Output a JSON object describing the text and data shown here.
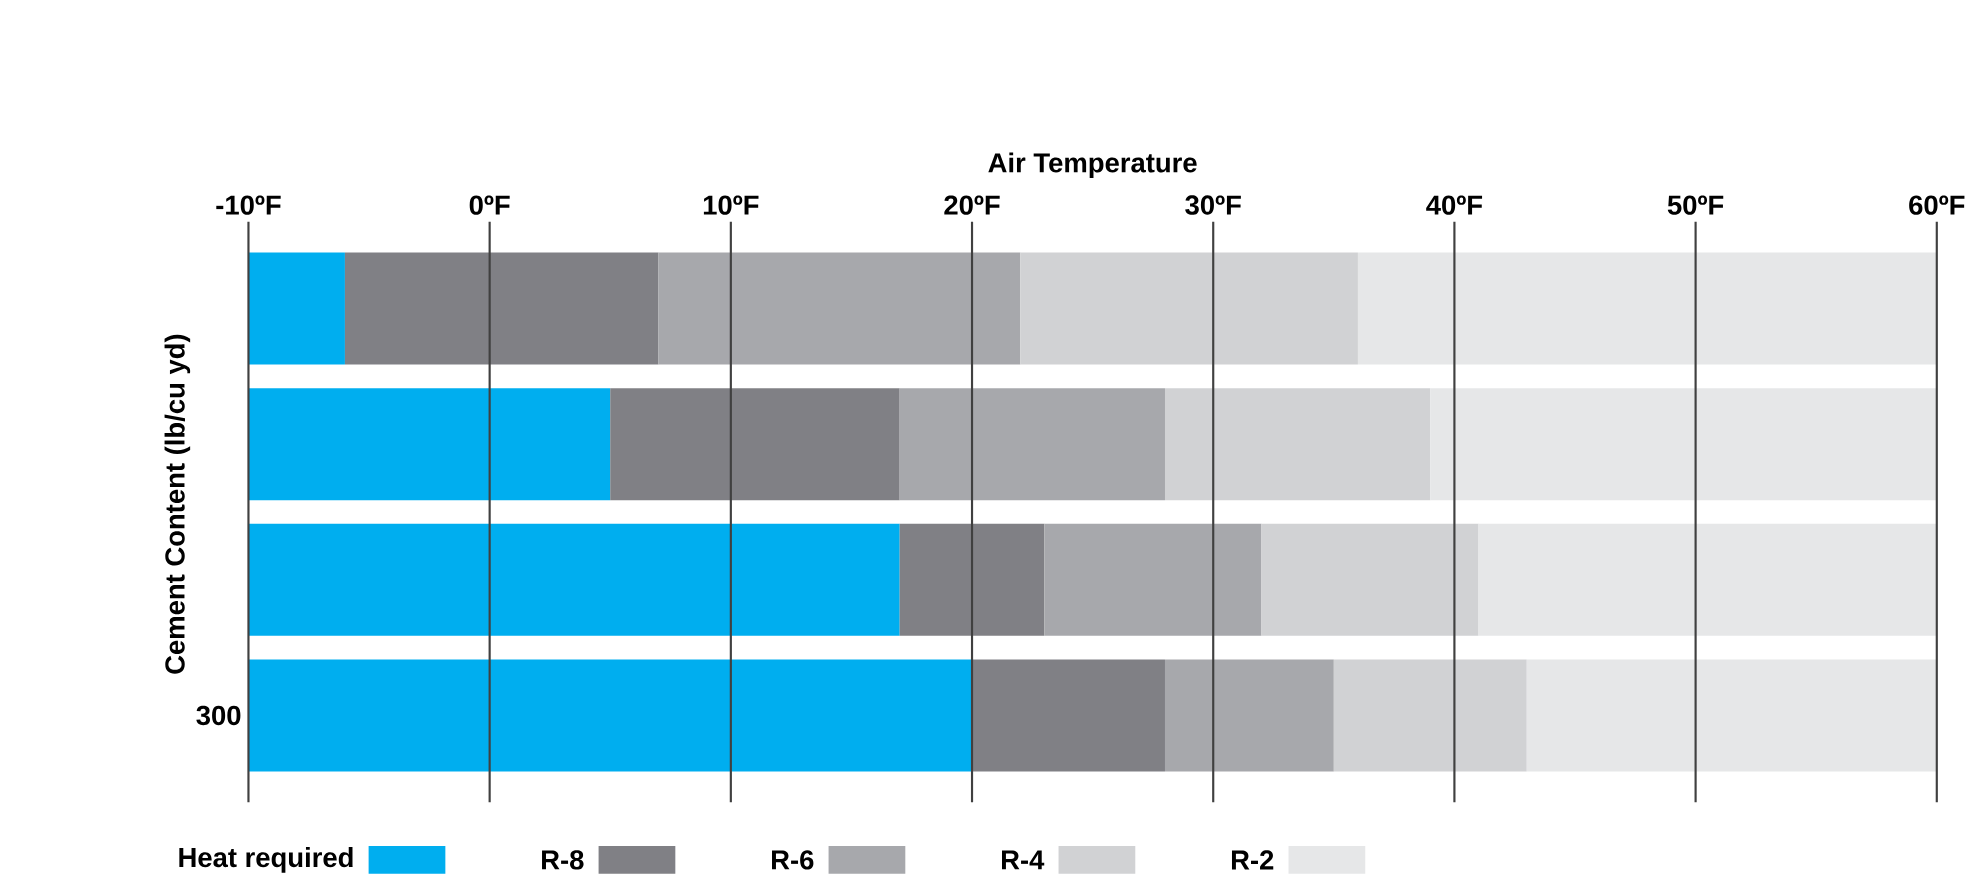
{
  "chart_data": {
    "type": "bar",
    "orientation": "horizontal",
    "xlabel": "Air Temperature",
    "ylabel": "Cement Content (lb/cu yd)",
    "categories": [
      null,
      null,
      null,
      "300"
    ],
    "series": [
      {
        "name": "Heat required",
        "color": "#00aeef",
        "base": [
          -10,
          -10,
          -10,
          -10
        ],
        "values": [
          4,
          15,
          27,
          30
        ]
      },
      {
        "name": "R-8",
        "color": "#808085",
        "base": [
          -6,
          5,
          17,
          20
        ],
        "values": [
          13,
          12,
          6,
          8
        ]
      },
      {
        "name": "R-6",
        "color": "#a7a8ac",
        "base": [
          7,
          17,
          23,
          28
        ],
        "values": [
          15,
          11,
          9,
          7
        ]
      },
      {
        "name": "R-4",
        "color": "#d1d2d4",
        "base": [
          22,
          28,
          32,
          35
        ],
        "values": [
          14,
          11,
          9,
          8
        ]
      },
      {
        "name": "R-2",
        "color": "#e6e7e8",
        "base": [
          36,
          39,
          41,
          43
        ],
        "values": [
          24,
          21,
          19,
          17
        ]
      }
    ],
    "xlim": [
      -10,
      60
    ],
    "xticks": [
      {
        "value": -10,
        "label": "-10ºF"
      },
      {
        "value": 0,
        "label": "0ºF"
      },
      {
        "value": 10,
        "label": "10ºF"
      },
      {
        "value": 20,
        "label": "20ºF"
      },
      {
        "value": 30,
        "label": "30ºF"
      },
      {
        "value": 40,
        "label": "40ºF"
      },
      {
        "value": 50,
        "label": "50ºF"
      },
      {
        "value": 60,
        "label": "60ºF"
      }
    ],
    "grid": "x",
    "legend": "bottom"
  }
}
